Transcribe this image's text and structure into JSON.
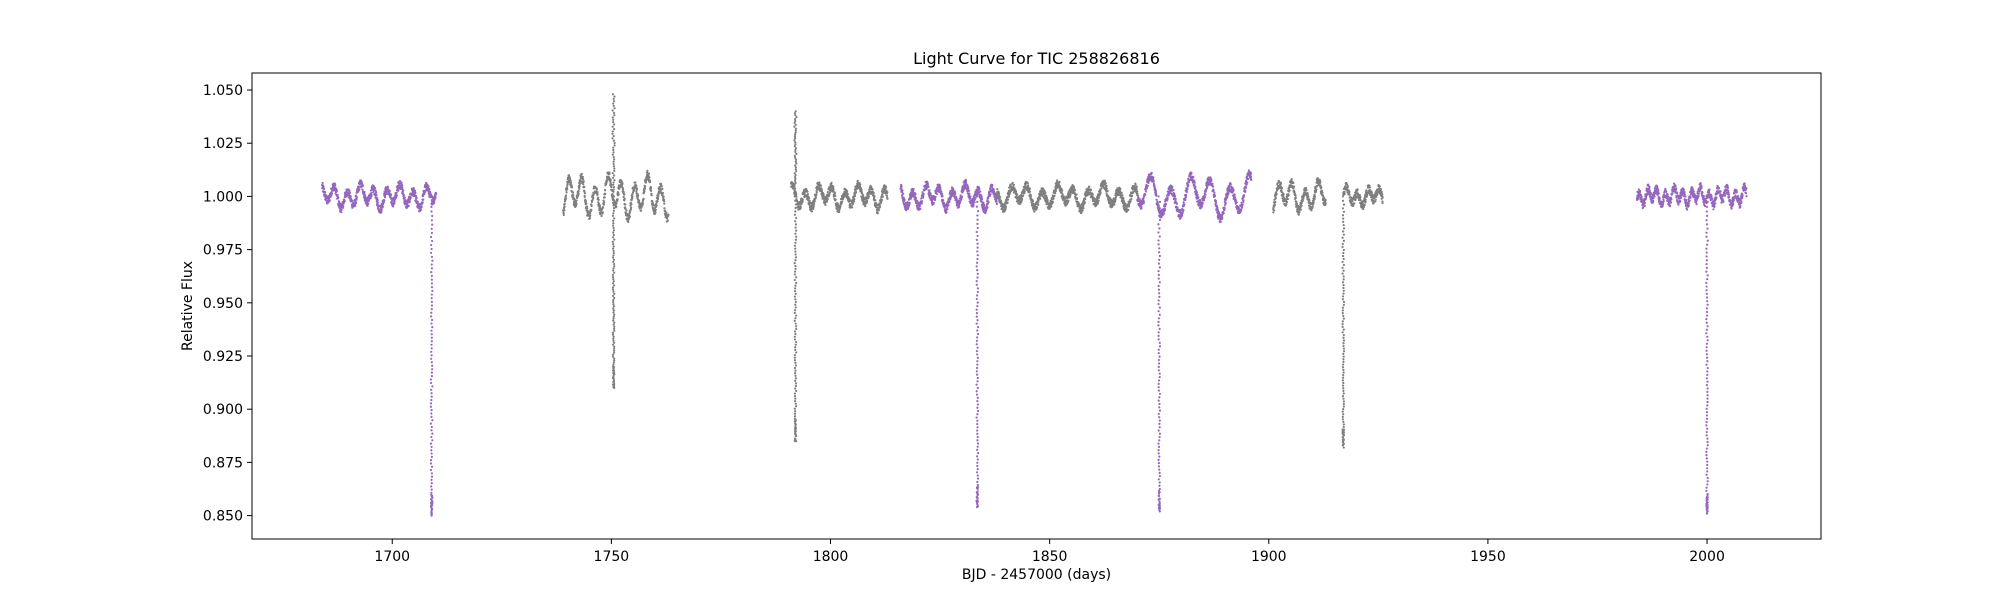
{
  "chart_data": {
    "type": "scatter",
    "title": "Light Curve for TIC 258826816",
    "xlabel": "BJD - 2457000 (days)",
    "ylabel": "Relative Flux",
    "xlim": [
      1668,
      2026
    ],
    "ylim": [
      0.839,
      1.058
    ],
    "xticks": [
      1700,
      1750,
      1800,
      1850,
      1900,
      1950,
      2000
    ],
    "yticks": [
      0.85,
      0.875,
      0.9,
      0.925,
      0.95,
      0.975,
      1.0,
      1.025,
      1.05
    ],
    "xtick_labels": [
      "1700",
      "1750",
      "1800",
      "1850",
      "1900",
      "1950",
      "2000"
    ],
    "ytick_labels": [
      "0.850",
      "0.875",
      "0.900",
      "0.925",
      "0.950",
      "0.975",
      "1.000",
      "1.025",
      "1.050"
    ],
    "grid": false,
    "legend": "none",
    "colors": {
      "highlight": "#9467bd",
      "other": "#7f7f7f"
    },
    "series": [
      {
        "color": "#9467bd",
        "segments": [
          {
            "x_range": [
              1684,
              1710
            ],
            "baseline": 1.0,
            "amplitude": 0.004,
            "period": 3.0
          },
          {
            "x_range": [
              1816,
              1838
            ],
            "baseline": 1.0,
            "amplitude": 0.004,
            "period": 3.0
          },
          {
            "x_range": [
              1870,
              1896
            ],
            "baseline": 1.0,
            "amplitude": 0.007,
            "period": 4.5
          },
          {
            "x_range": [
              1984,
              2009
            ],
            "baseline": 1.0,
            "amplitude": 0.003,
            "period": 2.0
          }
        ],
        "dips": [
          {
            "x": 1709,
            "min": 0.85
          },
          {
            "x": 1833.5,
            "min": 0.854
          },
          {
            "x": 1875,
            "min": 0.852
          },
          {
            "x": 2000,
            "min": 0.851
          }
        ]
      },
      {
        "color": "#7f7f7f",
        "segments": [
          {
            "x_range": [
              1739,
              1763
            ],
            "baseline": 1.0,
            "amplitude": 0.007,
            "period": 3.0
          },
          {
            "x_range": [
              1791,
              1813
            ],
            "baseline": 1.0,
            "amplitude": 0.004,
            "period": 3.0
          },
          {
            "x_range": [
              1838,
              1870
            ],
            "baseline": 1.0,
            "amplitude": 0.004,
            "period": 3.5
          },
          {
            "x_range": [
              1901,
              1913
            ],
            "baseline": 1.0,
            "amplitude": 0.005,
            "period": 3.0
          },
          {
            "x_range": [
              1917,
              1926
            ],
            "baseline": 1.0,
            "amplitude": 0.003,
            "period": 2.5
          }
        ],
        "dips": [
          {
            "x": 1750.5,
            "min": 0.91
          },
          {
            "x": 1792,
            "min": 0.885
          },
          {
            "x": 1917,
            "min": 0.882
          }
        ],
        "spikes": [
          {
            "x": 1750.5,
            "max": 1.048
          },
          {
            "x": 1792,
            "max": 1.04
          }
        ]
      }
    ]
  }
}
